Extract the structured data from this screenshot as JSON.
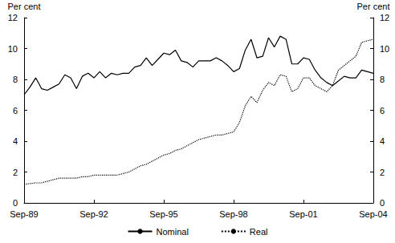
{
  "chart_data": {
    "type": "line",
    "ylabel": "Per cent",
    "y2label": "Per cent",
    "categories": [
      "Sep-89",
      null,
      null,
      null,
      null,
      null,
      null,
      null,
      null,
      null,
      null,
      null,
      "Sep-92",
      null,
      null,
      null,
      null,
      null,
      null,
      null,
      null,
      null,
      null,
      null,
      "Sep-95",
      null,
      null,
      null,
      null,
      null,
      null,
      null,
      null,
      null,
      null,
      null,
      "Sep-98",
      null,
      null,
      null,
      null,
      null,
      null,
      null,
      null,
      null,
      null,
      null,
      "Sep-01",
      null,
      null,
      null,
      null,
      null,
      null,
      null,
      null,
      null,
      null,
      null,
      "Sep-04"
    ],
    "series": [
      {
        "name": "Nominal",
        "color": "#000000",
        "line_style": "solid",
        "values": [
          7.0,
          7.5,
          8.1,
          7.4,
          7.3,
          7.5,
          7.7,
          8.3,
          8.1,
          7.4,
          8.2,
          8.4,
          8.1,
          8.5,
          8.1,
          8.4,
          8.3,
          8.4,
          8.4,
          8.8,
          8.9,
          9.4,
          8.9,
          9.3,
          9.7,
          9.6,
          9.9,
          9.2,
          9.1,
          8.8,
          9.2,
          9.2,
          9.2,
          9.4,
          9.2,
          8.9,
          8.5,
          8.7,
          9.9,
          10.6,
          9.4,
          9.5,
          10.7,
          10.1,
          10.8,
          10.6,
          9.0,
          9.0,
          9.4,
          9.3,
          8.6,
          8.1,
          7.8,
          7.6,
          7.9,
          8.2,
          8.1,
          8.1,
          8.6,
          8.5,
          8.4
        ]
      },
      {
        "name": "Real",
        "color": "#000000",
        "line_style": "dotted",
        "values": [
          1.2,
          1.25,
          1.3,
          1.3,
          1.4,
          1.5,
          1.6,
          1.6,
          1.6,
          1.6,
          1.7,
          1.7,
          1.8,
          1.8,
          1.8,
          1.8,
          1.8,
          1.9,
          2.0,
          2.2,
          2.4,
          2.5,
          2.7,
          2.9,
          3.1,
          3.2,
          3.4,
          3.5,
          3.7,
          3.9,
          4.1,
          4.2,
          4.3,
          4.4,
          4.4,
          4.5,
          4.6,
          5.2,
          6.3,
          6.9,
          6.5,
          7.3,
          7.8,
          7.6,
          8.3,
          8.2,
          7.2,
          7.4,
          8.1,
          8.1,
          7.6,
          7.4,
          7.2,
          7.6,
          8.6,
          8.9,
          9.2,
          9.5,
          10.4,
          10.5,
          10.6
        ]
      }
    ],
    "ylim": [
      0,
      12
    ],
    "yticks": [
      0,
      2,
      4,
      6,
      8,
      10,
      12
    ],
    "y2lim": [
      0,
      12
    ],
    "y2ticks": [
      0,
      2,
      4,
      6,
      8,
      10,
      12
    ],
    "grid": false,
    "legend": "bottom"
  }
}
